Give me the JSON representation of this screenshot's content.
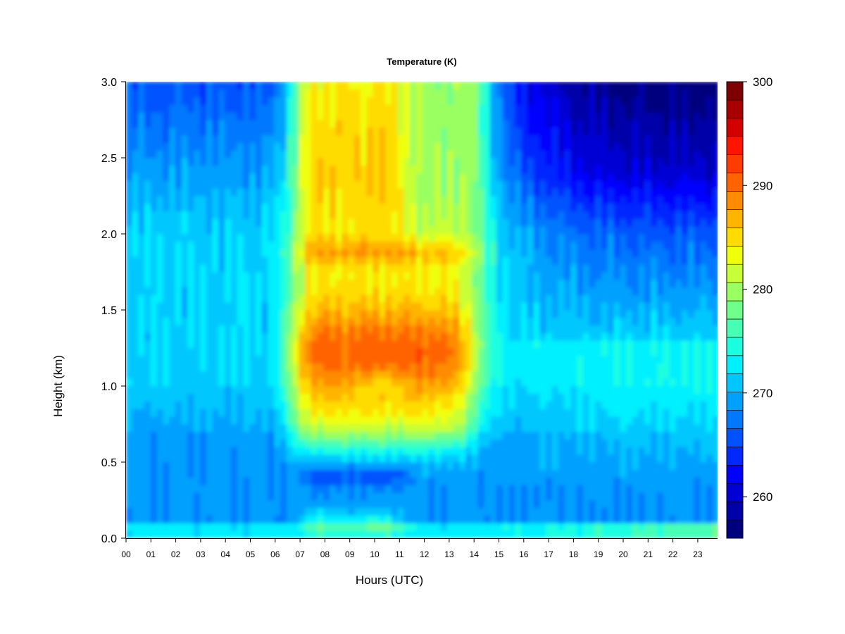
{
  "chart_data": {
    "type": "heatmap",
    "title": "Temperature (K)",
    "xlabel": "Hours (UTC)",
    "ylabel": "Height (km)",
    "x_ticks": [
      "00",
      "01",
      "02",
      "03",
      "04",
      "05",
      "06",
      "07",
      "08",
      "09",
      "10",
      "11",
      "12",
      "13",
      "14",
      "15",
      "16",
      "17",
      "18",
      "19",
      "20",
      "21",
      "22",
      "23"
    ],
    "xlim": [
      0,
      23.85
    ],
    "y_ticks": [
      "0.0",
      "0.5",
      "1.0",
      "1.5",
      "2.0",
      "2.5",
      "3.0"
    ],
    "ylim": [
      0,
      3.0
    ],
    "colorbar": {
      "label_ticks": [
        "260",
        "270",
        "280",
        "290",
        "300"
      ],
      "range": [
        256,
        300
      ],
      "levels": 22,
      "colors": [
        "#00007F",
        "#0000A8",
        "#0000D4",
        "#0000FF",
        "#0028FF",
        "#0052FF",
        "#0078FF",
        "#00A0FF",
        "#00C8FF",
        "#00F0FF",
        "#1AFFE0",
        "#46FFB5",
        "#70FF8A",
        "#9AFF60",
        "#C8FF36",
        "#F0FF0A",
        "#FFDC00",
        "#FFB400",
        "#FF8C00",
        "#FF6400",
        "#FF3C00",
        "#FF1400",
        "#D40000",
        "#A80000",
        "#7F0000"
      ]
    },
    "z_description": "Temperature in Kelvin; ~270-274 K at night and low levels, 288-296 K maximum near 1.2 km between 07 and 13 UTC, ~265-268 K at 0.4 km layer 07-11 UTC, ~260-264 K above 2 km after 17 UTC",
    "grid": false,
    "legend": "colorbar right"
  }
}
